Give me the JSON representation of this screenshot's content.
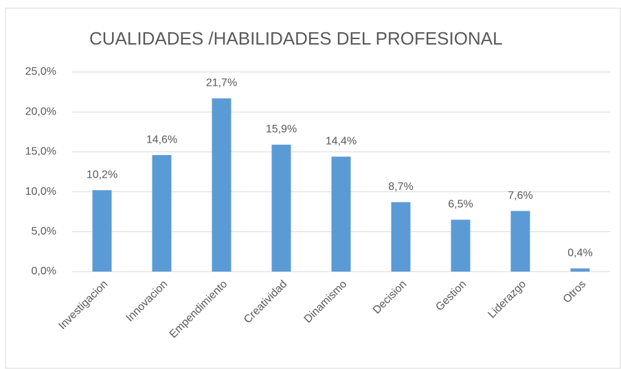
{
  "chart_data": {
    "type": "bar",
    "title": "CUALIDADES /HABILIDADES DEL PROFESIONAL",
    "categories": [
      "Investigacion",
      "Innovacion",
      "Empendimiento",
      "Creatividad",
      "Dinamismo",
      "Decision",
      "Gestion",
      "Liderazgo",
      "Otros"
    ],
    "values": [
      10.2,
      14.6,
      21.7,
      15.9,
      14.4,
      8.7,
      6.5,
      7.6,
      0.4
    ],
    "value_labels": [
      "10,2%",
      "14,6%",
      "21,7%",
      "15,9%",
      "14,4%",
      "8,7%",
      "6,5%",
      "7,6%",
      "0,4%"
    ],
    "color": "#5b9bd5",
    "ylim": [
      0,
      25
    ],
    "yticks": [
      {
        "value": 0,
        "label": "0,0%"
      },
      {
        "value": 5,
        "label": "5,0%"
      },
      {
        "value": 10,
        "label": "10,0%"
      },
      {
        "value": 15,
        "label": "15,0%"
      },
      {
        "value": 20,
        "label": "20,0%"
      },
      {
        "value": 25,
        "label": "25,0%"
      }
    ],
    "grid": true
  }
}
